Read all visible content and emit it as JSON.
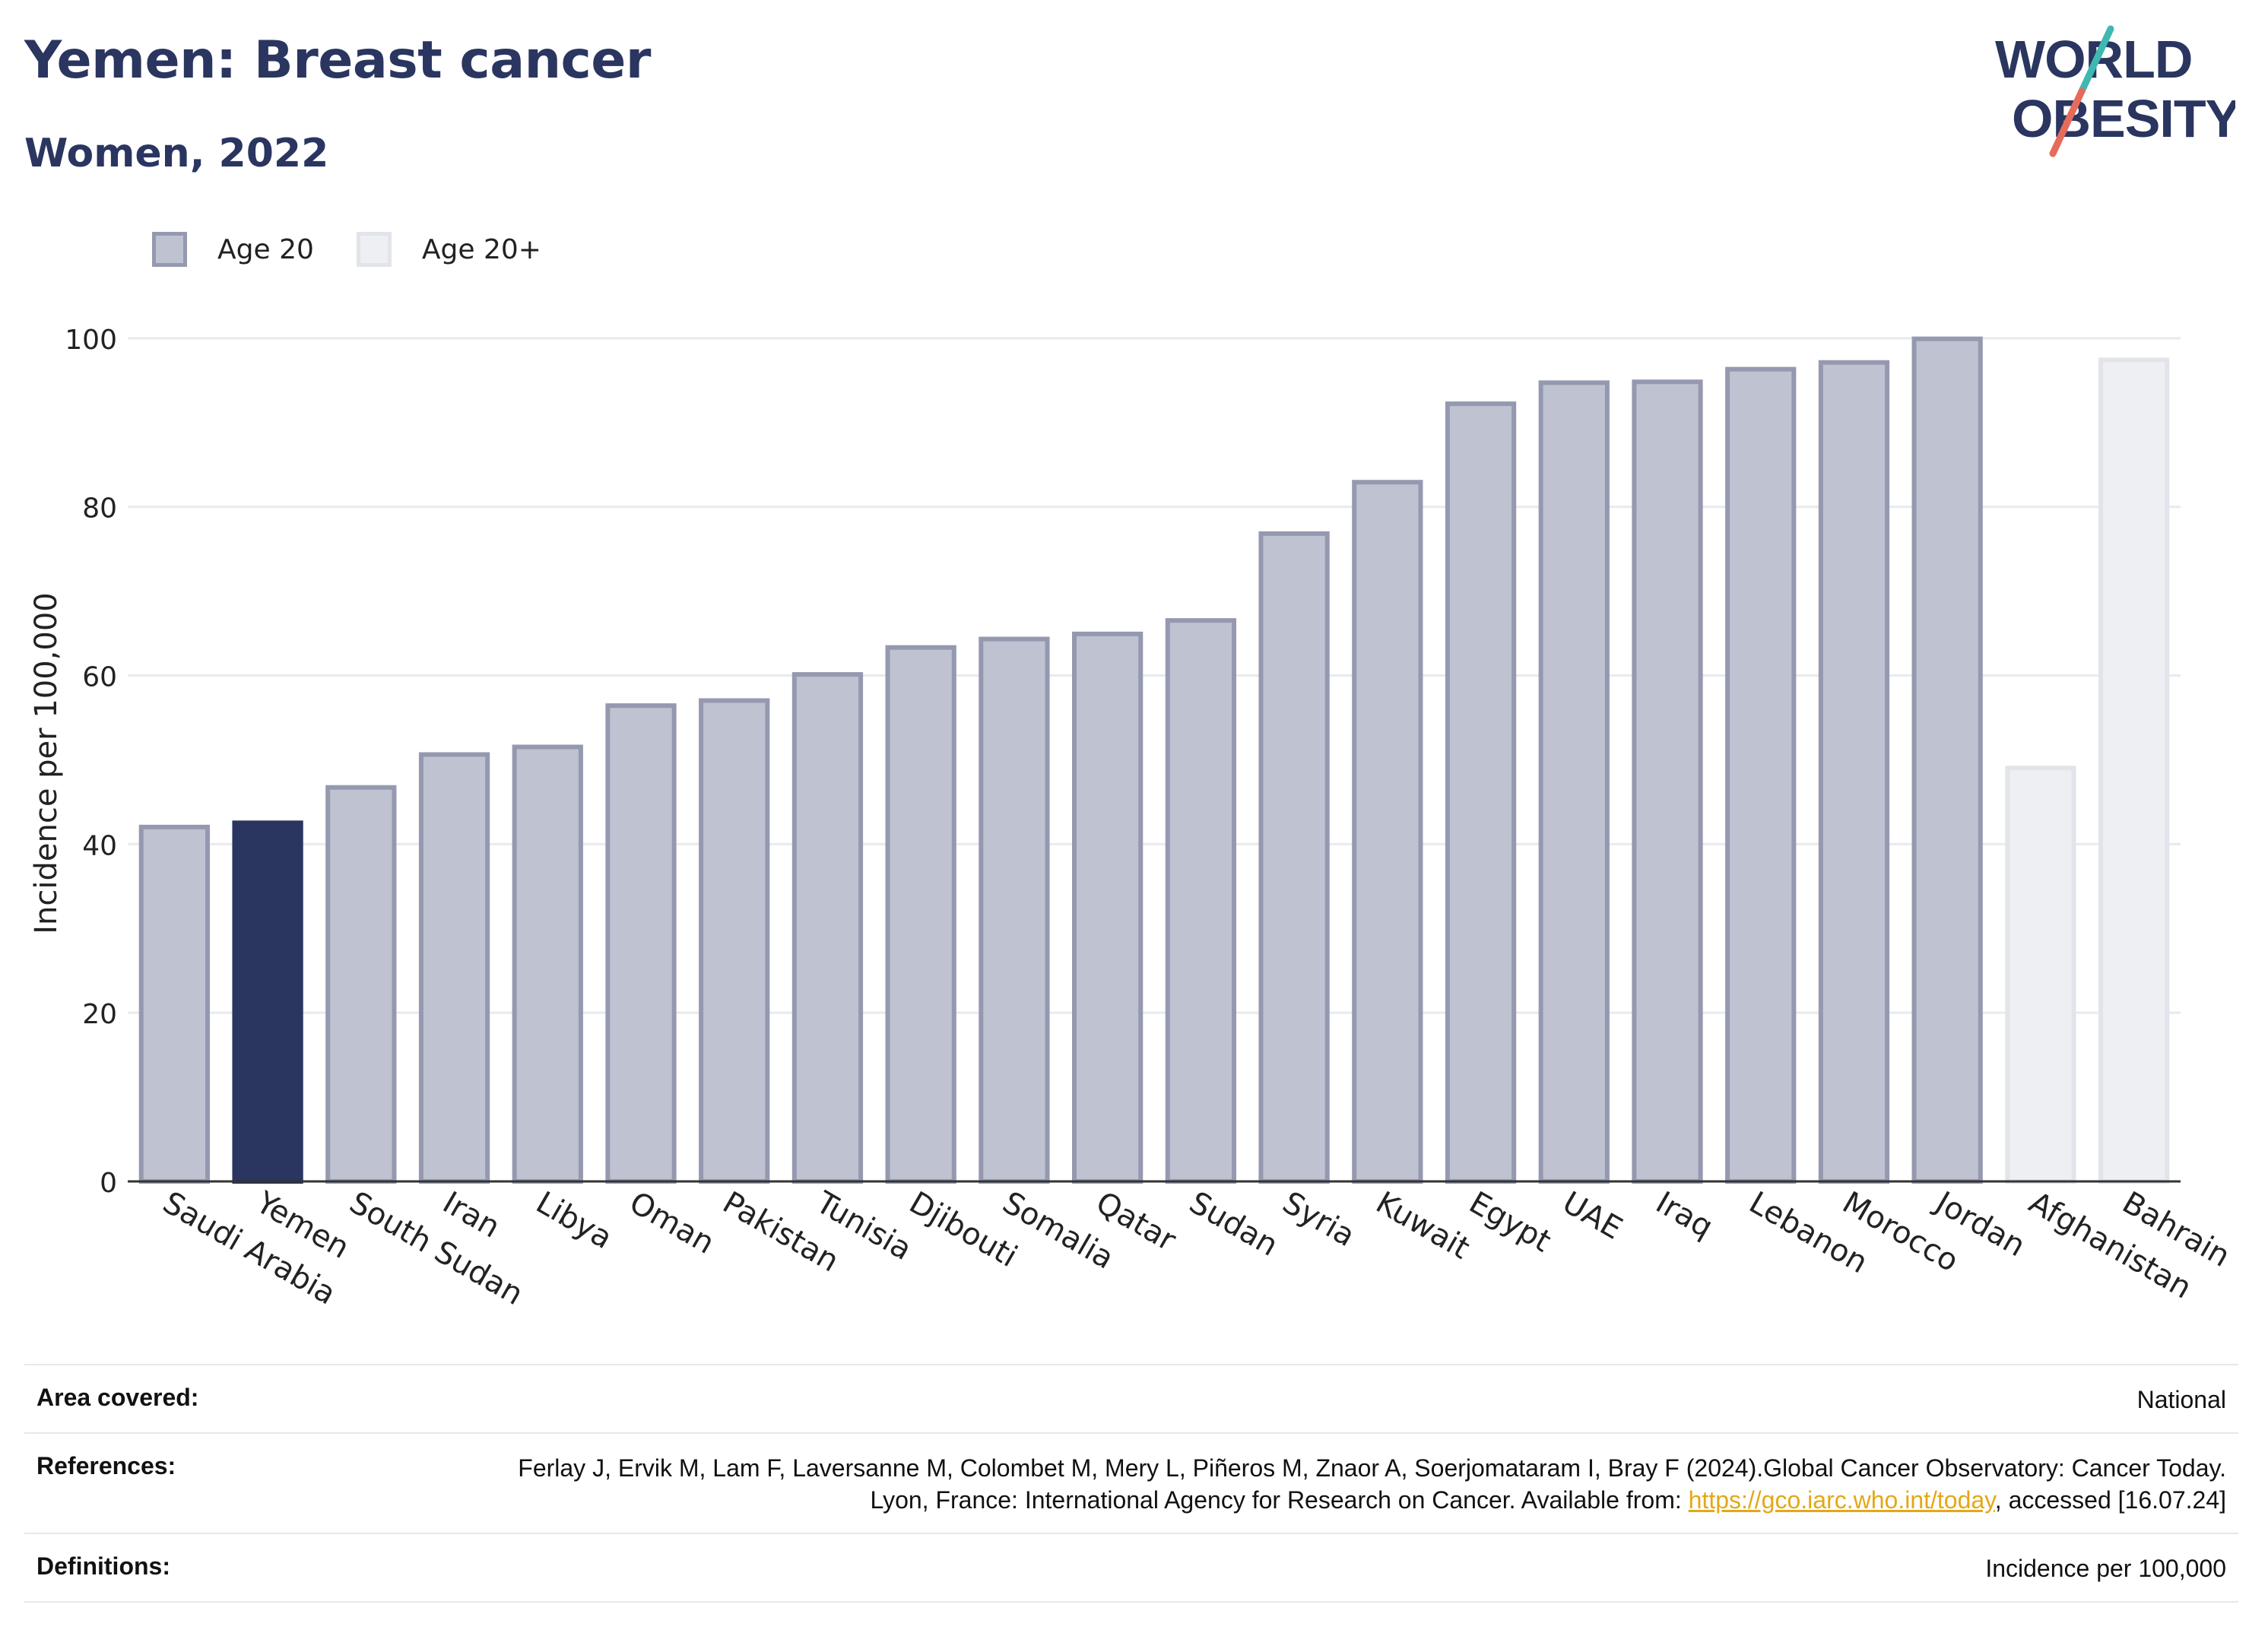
{
  "header": {
    "title": "Yemen: Breast cancer",
    "subtitle": "Women, 2022"
  },
  "logo": {
    "line1": "WORLD",
    "line2": "OBESITY",
    "colors": {
      "text": "#2a3560",
      "slash_teal": "#3fb8b0",
      "slash_coral": "#e56b5a"
    }
  },
  "legend": {
    "items": [
      {
        "label": "Age 20",
        "color": "#bfc2d0",
        "border": "#9599b0"
      },
      {
        "label": "Age 20+",
        "color": "#eeeff3",
        "border": "#e2e4ea"
      }
    ]
  },
  "chart_data": {
    "type": "bar",
    "ylabel": "Incidence per 100,000",
    "ylim": [
      0,
      110
    ],
    "yticks": [
      0,
      20,
      40,
      60,
      80,
      100
    ],
    "grid": true,
    "categories": [
      "Saudi Arabia",
      "Yemen",
      "South Sudan",
      "Iran",
      "Libya",
      "Oman",
      "Pakistan",
      "Tunisia",
      "Djibouti",
      "Somalia",
      "Qatar",
      "Sudan",
      "Syria",
      "Kuwait",
      "Egypt",
      "UAE",
      "Iraq",
      "Lebanon",
      "Morocco",
      "Jordan",
      "Afghanistan",
      "Bahrain"
    ],
    "values": [
      42.3,
      42.8,
      47.0,
      50.9,
      51.8,
      56.7,
      57.3,
      60.4,
      63.6,
      64.6,
      65.2,
      66.8,
      77.1,
      83.2,
      92.5,
      95.0,
      95.1,
      96.6,
      97.4,
      100.2,
      49.3,
      97.7
    ],
    "series_group": [
      "Age 20",
      "Age 20",
      "Age 20",
      "Age 20",
      "Age 20",
      "Age 20",
      "Age 20",
      "Age 20",
      "Age 20",
      "Age 20",
      "Age 20",
      "Age 20",
      "Age 20",
      "Age 20",
      "Age 20",
      "Age 20",
      "Age 20",
      "Age 20",
      "Age 20",
      "Age 20",
      "Age 20+",
      "Age 20+"
    ],
    "highlight": "Yemen",
    "colors": {
      "age20_fill": "#bfc2d0",
      "age20_border": "#9599b0",
      "age20plus_fill": "#eeeff3",
      "age20plus_border": "#e2e4ea",
      "highlight_fill": "#2a3560"
    }
  },
  "footer": {
    "area_label": "Area covered:",
    "area_value": "National",
    "references_label": "References:",
    "references_text": "Ferlay J, Ervik M, Lam F, Laversanne M, Colombet M, Mery L, Piñeros M, Znaor A, Soerjomataram I, Bray F (2024).Global Cancer Observatory: Cancer Today. Lyon, France: International Agency for Research on Cancer. Available from: ",
    "references_link": "https://gco.iarc.who.int/today",
    "references_tail": ", accessed [16.07.24]",
    "definitions_label": "Definitions:",
    "definitions_value": "Incidence per 100,000"
  }
}
